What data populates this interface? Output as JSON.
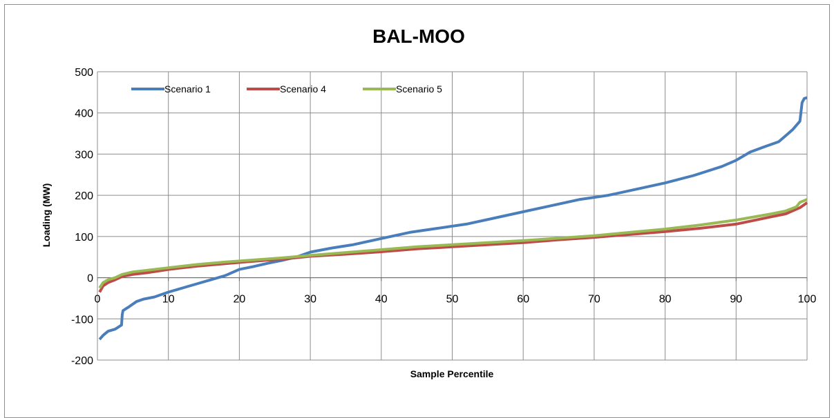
{
  "chart_data": {
    "type": "line",
    "title": "BAL-MOO",
    "xlabel": "Sample Percentile",
    "ylabel": "Loading (MW)",
    "xlim": [
      0,
      100
    ],
    "ylim": [
      -200,
      500
    ],
    "x_ticks": [
      0,
      10,
      20,
      30,
      40,
      50,
      60,
      70,
      80,
      90,
      100
    ],
    "y_ticks": [
      -200,
      -100,
      0,
      100,
      200,
      300,
      400,
      500
    ],
    "grid": true,
    "legend_position": "top-left",
    "series": [
      {
        "name": "Scenario 1",
        "color": "#4a7ebb",
        "x": [
          0.3,
          0.8,
          1.5,
          2.5,
          3.4,
          3.5,
          3.6,
          4.5,
          5.5,
          6.5,
          8,
          10,
          12,
          14,
          16,
          18,
          20,
          22,
          24,
          26,
          28,
          30,
          33,
          36,
          40,
          44,
          48,
          52,
          56,
          60,
          64,
          68,
          72,
          76,
          80,
          84,
          88,
          90,
          92,
          94,
          96,
          97,
          98,
          99,
          99.3,
          99.6,
          100
        ],
        "y": [
          -150,
          -140,
          -130,
          -125,
          -115,
          -90,
          -80,
          -70,
          -58,
          -52,
          -47,
          -35,
          -25,
          -15,
          -5,
          5,
          20,
          27,
          35,
          42,
          50,
          62,
          72,
          80,
          95,
          110,
          120,
          130,
          145,
          160,
          175,
          190,
          200,
          215,
          230,
          248,
          270,
          285,
          305,
          318,
          330,
          345,
          360,
          380,
          425,
          435,
          437
        ]
      },
      {
        "name": "Scenario 4",
        "color": "#be4b48",
        "x": [
          0.3,
          0.8,
          1.5,
          2.5,
          3.5,
          5,
          7,
          10,
          14,
          18,
          22,
          26,
          30,
          35,
          40,
          45,
          50,
          55,
          60,
          65,
          70,
          75,
          80,
          85,
          90,
          95,
          97,
          99,
          100
        ],
        "y": [
          -35,
          -20,
          -12,
          -5,
          3,
          8,
          12,
          20,
          28,
          34,
          40,
          45,
          52,
          57,
          63,
          70,
          75,
          80,
          85,
          92,
          98,
          105,
          112,
          120,
          130,
          148,
          155,
          170,
          182
        ]
      },
      {
        "name": "Scenario 5",
        "color": "#98b954",
        "x": [
          0.3,
          0.8,
          1.5,
          2.5,
          3.5,
          5,
          7,
          10,
          14,
          18,
          22,
          26,
          30,
          35,
          40,
          45,
          50,
          55,
          60,
          65,
          70,
          75,
          80,
          85,
          90,
          95,
          97,
          98.5,
          99,
          100
        ],
        "y": [
          -25,
          -12,
          -5,
          0,
          8,
          14,
          18,
          24,
          32,
          38,
          43,
          48,
          54,
          61,
          68,
          75,
          80,
          85,
          90,
          96,
          102,
          110,
          118,
          128,
          140,
          155,
          162,
          172,
          183,
          190
        ]
      }
    ]
  }
}
